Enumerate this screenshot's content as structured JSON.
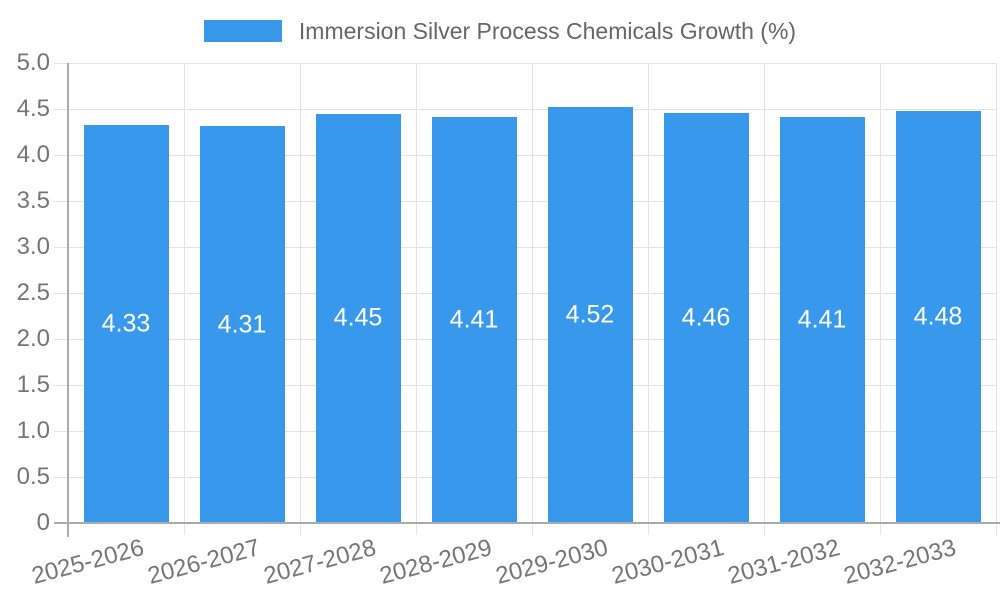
{
  "chart_data": {
    "type": "bar",
    "title": "Immersion Silver Process Chemicals Growth (%)",
    "xlabel": "",
    "ylabel": "",
    "categories": [
      "2025-2026",
      "2026-2027",
      "2027-2028",
      "2028-2029",
      "2029-2030",
      "2030-2031",
      "2031-2032",
      "2032-2033"
    ],
    "values": [
      4.33,
      4.31,
      4.45,
      4.41,
      4.52,
      4.46,
      4.41,
      4.48
    ],
    "value_labels": [
      "4.33",
      "4.31",
      "4.45",
      "4.41",
      "4.52",
      "4.46",
      "4.41",
      "4.48"
    ],
    "ylim": [
      0,
      5
    ],
    "ytick_step": 0.5,
    "ytick_labels": [
      "0",
      "0.5",
      "1.0",
      "1.5",
      "2.0",
      "2.5",
      "3.0",
      "3.5",
      "4.0",
      "4.5",
      "5.0"
    ],
    "grid": true,
    "legend_position": "top",
    "colors": {
      "bar": "#3898EC",
      "grid": "#E3E3E3",
      "axis": "#ABABAB",
      "tick_text": "#757575",
      "title_text": "#666666",
      "bar_label_text": "#FFFFFF",
      "background": "#FFFFFF"
    }
  }
}
